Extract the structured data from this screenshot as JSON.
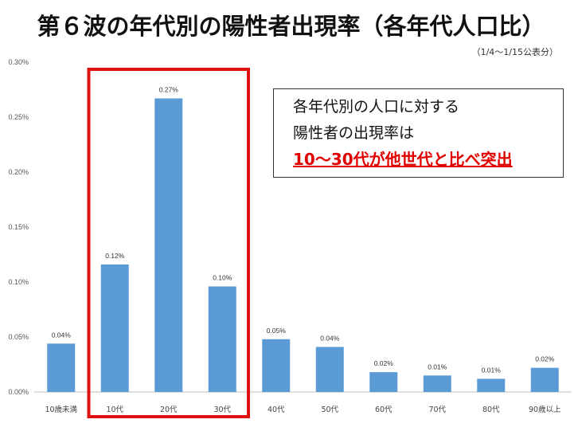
{
  "title": "第６波の年代別の陽性者出現率（各年代人口比）",
  "subtitle": "（1/4～1/15公表分）",
  "note": {
    "line1": "各年代別の人口に対する",
    "line2": "陽性者の出現率は",
    "line3": "10～30代が他世代と比べ突出"
  },
  "colors": {
    "bar": "#5b9bd5",
    "highlight": "#e01010",
    "axis": "#bfbfbf"
  },
  "highlight_categories": [
    "10代",
    "20代",
    "30代"
  ],
  "chart_data": {
    "type": "bar",
    "title": "第６波の年代別の陽性者出現率（各年代人口比）",
    "categories": [
      "10歳未満",
      "10代",
      "20代",
      "30代",
      "40代",
      "50代",
      "60代",
      "70代",
      "80代",
      "90歳以上"
    ],
    "values": [
      0.00044,
      0.00116,
      0.00267,
      0.00096,
      0.00048,
      0.00041,
      0.00018,
      0.00015,
      0.00012,
      0.00022
    ],
    "data_labels": [
      "0.04%",
      "0.12%",
      "0.27%",
      "0.10%",
      "0.05%",
      "0.04%",
      "0.02%",
      "0.01%",
      "0.01%",
      "0.02%"
    ],
    "yticks": [
      "0.00%",
      "0.05%",
      "0.10%",
      "0.15%",
      "0.20%",
      "0.25%",
      "0.30%"
    ],
    "ylim": [
      0,
      0.003
    ],
    "grid": false,
    "legend": "none"
  }
}
